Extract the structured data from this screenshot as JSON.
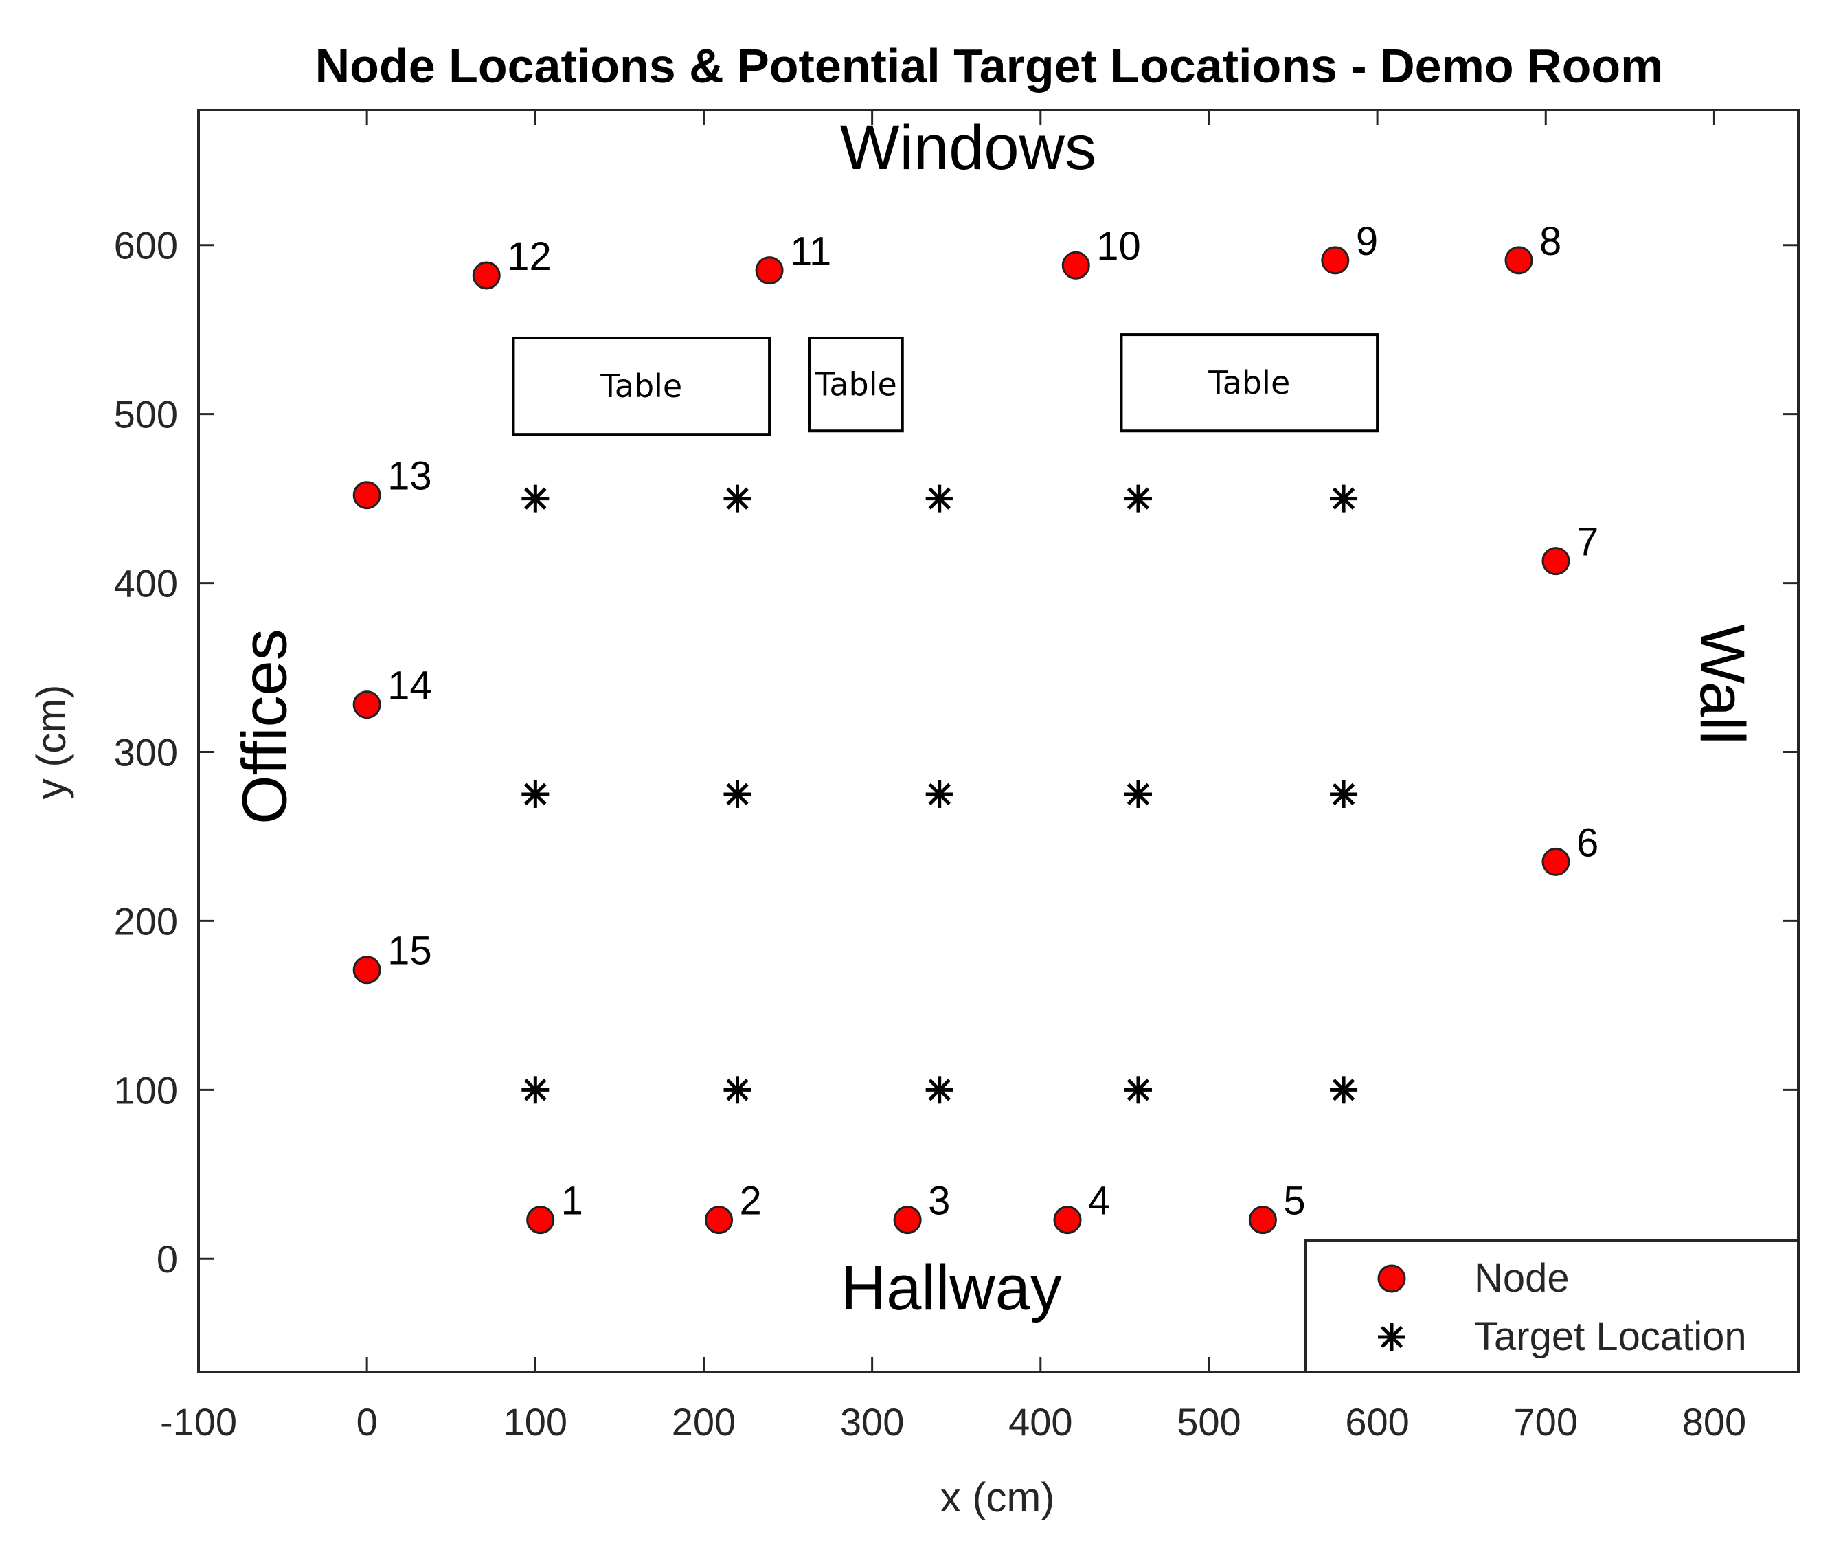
{
  "chart_data": {
    "type": "scatter",
    "title": "Node Locations & Potential Target Locations - Demo Room",
    "xlabel": "x (cm)",
    "ylabel": "y (cm)",
    "xlim": [
      -100,
      850
    ],
    "ylim": [
      -67,
      680
    ],
    "xticks": [
      -100,
      0,
      100,
      200,
      300,
      400,
      500,
      600,
      700,
      800
    ],
    "yticks": [
      0,
      100,
      200,
      300,
      400,
      500,
      600
    ],
    "grid": false,
    "legend_position": "bottom-right",
    "series": [
      {
        "name": "Node",
        "marker": "filled-circle",
        "color": "#ff0000",
        "points": [
          {
            "label": "1",
            "x": 103,
            "y": 23
          },
          {
            "label": "2",
            "x": 209,
            "y": 23
          },
          {
            "label": "3",
            "x": 321,
            "y": 23
          },
          {
            "label": "4",
            "x": 416,
            "y": 23
          },
          {
            "label": "5",
            "x": 532,
            "y": 23
          },
          {
            "label": "6",
            "x": 706,
            "y": 235
          },
          {
            "label": "7",
            "x": 706,
            "y": 413
          },
          {
            "label": "8",
            "x": 684,
            "y": 591
          },
          {
            "label": "9",
            "x": 575,
            "y": 591
          },
          {
            "label": "10",
            "x": 421,
            "y": 588
          },
          {
            "label": "11",
            "x": 239,
            "y": 585
          },
          {
            "label": "12",
            "x": 71,
            "y": 582
          },
          {
            "label": "13",
            "x": 0,
            "y": 452
          },
          {
            "label": "14",
            "x": 0,
            "y": 328
          },
          {
            "label": "15",
            "x": 0,
            "y": 171
          }
        ]
      },
      {
        "name": "Target Location",
        "marker": "asterisk",
        "color": "#000000",
        "points": [
          {
            "x": 100,
            "y": 450
          },
          {
            "x": 220,
            "y": 450
          },
          {
            "x": 340,
            "y": 450
          },
          {
            "x": 458,
            "y": 450
          },
          {
            "x": 580,
            "y": 450
          },
          {
            "x": 100,
            "y": 275
          },
          {
            "x": 220,
            "y": 275
          },
          {
            "x": 340,
            "y": 275
          },
          {
            "x": 458,
            "y": 275
          },
          {
            "x": 580,
            "y": 275
          },
          {
            "x": 100,
            "y": 100
          },
          {
            "x": 220,
            "y": 100
          },
          {
            "x": 340,
            "y": 100
          },
          {
            "x": 458,
            "y": 100
          },
          {
            "x": 580,
            "y": 100
          }
        ]
      }
    ],
    "tables": [
      {
        "label": "Table",
        "x0": 87,
        "x1": 239,
        "y0": 488,
        "y1": 545
      },
      {
        "label": "Table",
        "x0": 263,
        "x1": 318,
        "y0": 490,
        "y1": 545
      },
      {
        "label": "Table",
        "x0": 448,
        "x1": 600,
        "y0": 490,
        "y1": 547
      }
    ],
    "annotations": [
      {
        "text": "Windows",
        "x": 357,
        "y": 645,
        "rotation": 0
      },
      {
        "text": "Hallway",
        "x": 347,
        "y": -30,
        "rotation": 0
      },
      {
        "text": "Offices",
        "x": -48,
        "y": 315,
        "rotation": -90
      },
      {
        "text": "Wall",
        "x": 792,
        "y": 340,
        "rotation": 90
      }
    ]
  }
}
